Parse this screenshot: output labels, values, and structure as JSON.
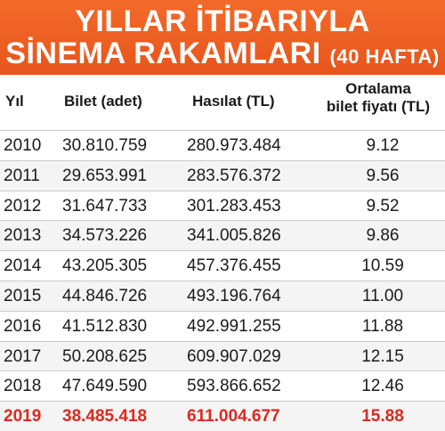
{
  "chart_data": {
    "type": "table",
    "title": "YILLAR İTİBARIYLA SİNEMA RAKAMLARI",
    "subtitle": "(40 HAFTA)",
    "columns": [
      "Yıl",
      "Bilet (adet)",
      "Hasılat (TL)",
      "Ortalama bilet fiyatı (TL)"
    ],
    "column_ortalama_line1": "Ortalama",
    "column_ortalama_line2": "bilet fiyatı (TL)",
    "rows": [
      {
        "yil": "2010",
        "bilet": "30.810.759",
        "hasilat": "280.973.484",
        "ort": "9.12"
      },
      {
        "yil": "2011",
        "bilet": "29.653.991",
        "hasilat": "283.576.372",
        "ort": "9.56"
      },
      {
        "yil": "2012",
        "bilet": "31.647.733",
        "hasilat": "301.283.453",
        "ort": "9.52"
      },
      {
        "yil": "2013",
        "bilet": "34.573.226",
        "hasilat": "341.005.826",
        "ort": "9.86"
      },
      {
        "yil": "2014",
        "bilet": "43.205.305",
        "hasilat": "457.376.455",
        "ort": "10.59"
      },
      {
        "yil": "2015",
        "bilet": "44.846.726",
        "hasilat": "493.196.764",
        "ort": "11.00"
      },
      {
        "yil": "2016",
        "bilet": "41.512.830",
        "hasilat": "492.991.255",
        "ort": "11.88"
      },
      {
        "yil": "2017",
        "bilet": "50.208.625",
        "hasilat": "609.907.029",
        "ort": "12.15"
      },
      {
        "yil": "2018",
        "bilet": "47.649.590",
        "hasilat": "593.866.652",
        "ort": "12.46"
      },
      {
        "yil": "2019",
        "bilet": "38.485.418",
        "hasilat": "611.004.677",
        "ort": "15.88"
      }
    ],
    "highlight_row": "2019",
    "colors": {
      "banner": "#e8551c",
      "highlight": "#e0281e"
    }
  }
}
